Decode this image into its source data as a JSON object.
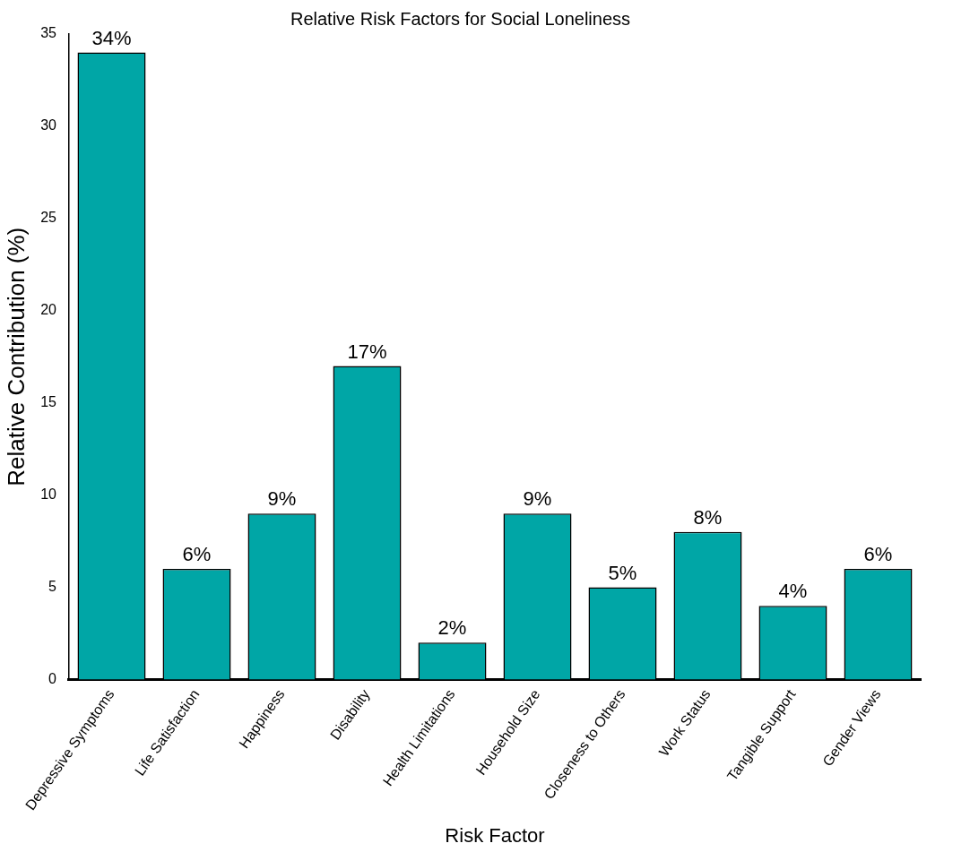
{
  "chart_data": {
    "type": "bar",
    "title": "Relative Risk Factors for Social Loneliness",
    "xlabel": "Risk Factor",
    "ylabel": "Relative Contribution (%)",
    "categories": [
      "Depressive Symptoms",
      "Life Satisfaction",
      "Happiness",
      "Disability",
      "Health Limitations",
      "Household Size",
      "Closeness to Others",
      "Work Status",
      "Tangible Support",
      "Gender Views"
    ],
    "values": [
      34,
      6,
      9,
      17,
      2,
      9,
      5,
      8,
      4,
      6
    ],
    "value_labels": [
      "34%",
      "6%",
      "9%",
      "17%",
      "2%",
      "9%",
      "5%",
      "8%",
      "4%",
      "6%"
    ],
    "color": "#00a6a6",
    "ylim": [
      0,
      35
    ],
    "yticks": [
      0,
      5,
      10,
      15,
      20,
      25,
      30,
      35
    ],
    "grid": false,
    "legend": false
  }
}
